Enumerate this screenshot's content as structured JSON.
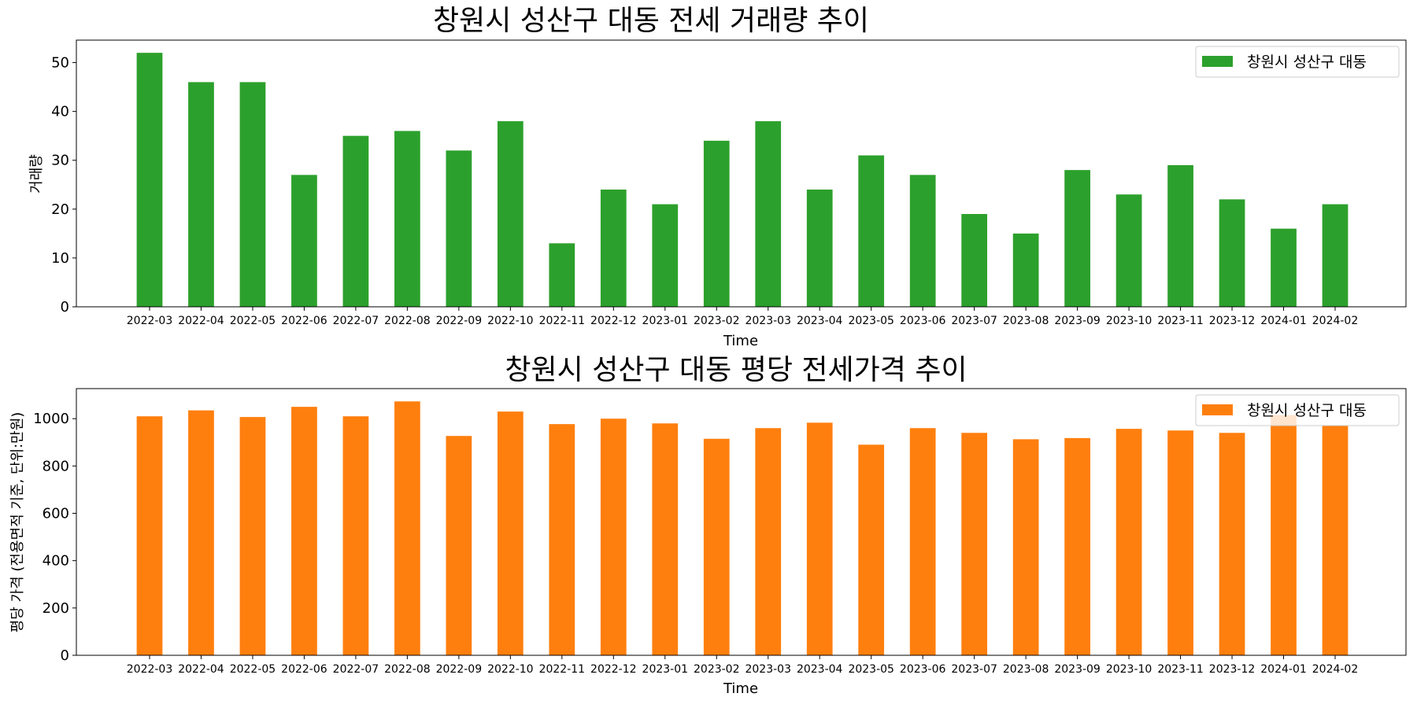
{
  "chart_data": [
    {
      "type": "bar",
      "title": "창원시 성산구 대동 전세 거래량 추이",
      "xlabel": "Time",
      "ylabel": "거래량",
      "categories": [
        "2022-03",
        "2022-04",
        "2022-05",
        "2022-06",
        "2022-07",
        "2022-08",
        "2022-09",
        "2022-10",
        "2022-11",
        "2022-12",
        "2023-01",
        "2023-02",
        "2023-03",
        "2023-04",
        "2023-05",
        "2023-06",
        "2023-07",
        "2023-08",
        "2023-09",
        "2023-10",
        "2023-11",
        "2023-12",
        "2024-01",
        "2024-02"
      ],
      "series": [
        {
          "name": "창원시 성산구 대동",
          "color": "#2ca02c",
          "values": [
            52,
            46,
            46,
            27,
            35,
            36,
            32,
            38,
            13,
            24,
            21,
            34,
            38,
            24,
            31,
            27,
            19,
            15,
            28,
            23,
            29,
            22,
            16,
            21
          ]
        }
      ],
      "ylim": [
        0,
        54.6
      ],
      "yticks": [
        0,
        10,
        20,
        30,
        40,
        50
      ],
      "grid": false,
      "legend": "top-right"
    },
    {
      "type": "bar",
      "title": "창원시 성산구 대동 평당 전세가격 추이",
      "xlabel": "Time",
      "ylabel": "평당 가격 (전용면적 기준, 단위:만원)",
      "categories": [
        "2022-03",
        "2022-04",
        "2022-05",
        "2022-06",
        "2022-07",
        "2022-08",
        "2022-09",
        "2022-10",
        "2022-11",
        "2022-12",
        "2023-01",
        "2023-02",
        "2023-03",
        "2023-04",
        "2023-05",
        "2023-06",
        "2023-07",
        "2023-08",
        "2023-09",
        "2023-10",
        "2023-11",
        "2023-12",
        "2024-01",
        "2024-02"
      ],
      "series": [
        {
          "name": "창원시 성산구 대동",
          "color": "#ff7f0e",
          "values": [
            1010,
            1035,
            1007,
            1050,
            1010,
            1073,
            927,
            1030,
            977,
            1000,
            980,
            915,
            960,
            983,
            890,
            960,
            940,
            913,
            918,
            957,
            950,
            940,
            1015,
            970
          ]
        }
      ],
      "ylim": [
        0,
        1127
      ],
      "yticks": [
        0,
        200,
        400,
        600,
        800,
        1000
      ],
      "grid": false,
      "legend": "top-right"
    }
  ]
}
